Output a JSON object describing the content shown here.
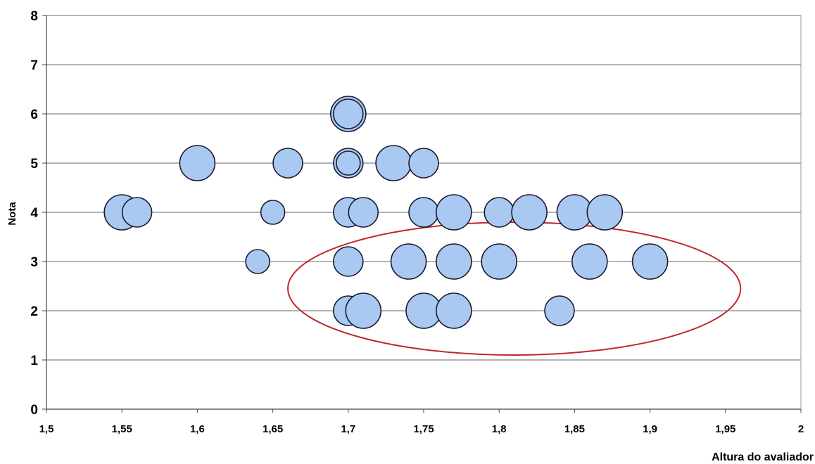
{
  "chart_data": {
    "type": "scatter",
    "title": "",
    "xlabel": "Altura do avaliador",
    "ylabel": "Nota",
    "xlim": [
      1.5,
      2
    ],
    "ylim": [
      0,
      8
    ],
    "x_ticks": [
      "1,5",
      "1,55",
      "1,6",
      "1,65",
      "1,7",
      "1,75",
      "1,8",
      "1,85",
      "1,9",
      "1,95",
      "2"
    ],
    "y_ticks": [
      "0",
      "1",
      "2",
      "3",
      "4",
      "5",
      "6",
      "7",
      "8"
    ],
    "grid": "horizontal",
    "legend": "none",
    "marker_color": "#a9c8f2",
    "marker_edge_color": "#1a1a2e",
    "annotation_ellipse_color": "#c0282d",
    "points": [
      {
        "x": 1.55,
        "y": 4,
        "size": "large"
      },
      {
        "x": 1.56,
        "y": 4,
        "size": "medium"
      },
      {
        "x": 1.6,
        "y": 5,
        "size": "large"
      },
      {
        "x": 1.64,
        "y": 3,
        "size": "small"
      },
      {
        "x": 1.65,
        "y": 4,
        "size": "small"
      },
      {
        "x": 1.66,
        "y": 5,
        "size": "medium"
      },
      {
        "x": 1.7,
        "y": 6,
        "size": "large"
      },
      {
        "x": 1.7,
        "y": 6,
        "size": "medium"
      },
      {
        "x": 1.7,
        "y": 5,
        "size": "medium"
      },
      {
        "x": 1.7,
        "y": 5,
        "size": "small"
      },
      {
        "x": 1.7,
        "y": 4,
        "size": "medium"
      },
      {
        "x": 1.7,
        "y": 3,
        "size": "medium"
      },
      {
        "x": 1.7,
        "y": 2,
        "size": "medium"
      },
      {
        "x": 1.71,
        "y": 4,
        "size": "medium"
      },
      {
        "x": 1.71,
        "y": 2,
        "size": "large"
      },
      {
        "x": 1.73,
        "y": 5,
        "size": "large"
      },
      {
        "x": 1.74,
        "y": 3,
        "size": "large"
      },
      {
        "x": 1.75,
        "y": 5,
        "size": "medium"
      },
      {
        "x": 1.75,
        "y": 4,
        "size": "medium"
      },
      {
        "x": 1.75,
        "y": 2,
        "size": "large"
      },
      {
        "x": 1.77,
        "y": 4,
        "size": "large"
      },
      {
        "x": 1.77,
        "y": 3,
        "size": "large"
      },
      {
        "x": 1.77,
        "y": 2,
        "size": "large"
      },
      {
        "x": 1.8,
        "y": 4,
        "size": "medium"
      },
      {
        "x": 1.8,
        "y": 3,
        "size": "large"
      },
      {
        "x": 1.82,
        "y": 4,
        "size": "large"
      },
      {
        "x": 1.84,
        "y": 2,
        "size": "medium"
      },
      {
        "x": 1.85,
        "y": 4,
        "size": "large"
      },
      {
        "x": 1.86,
        "y": 3,
        "size": "large"
      },
      {
        "x": 1.87,
        "y": 4,
        "size": "large"
      },
      {
        "x": 1.9,
        "y": 3,
        "size": "large"
      }
    ],
    "highlight_ellipse": {
      "x_center": 1.81,
      "y_center": 2.45,
      "x_radius": 0.15,
      "y_radius": 1.35
    }
  }
}
